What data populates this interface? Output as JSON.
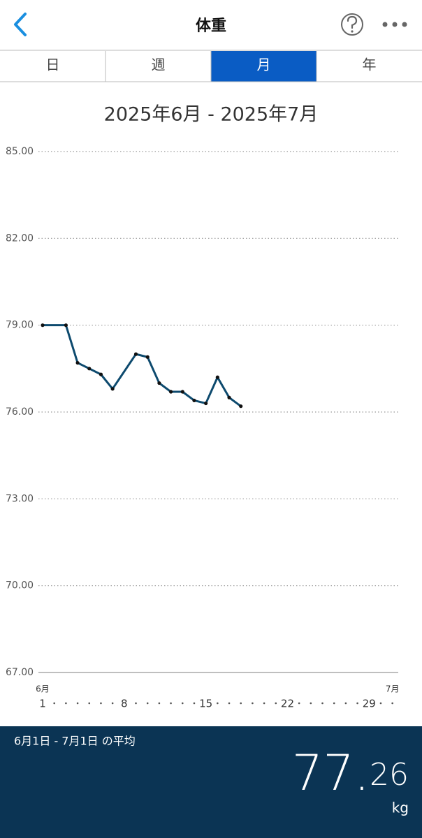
{
  "header": {
    "title": "体重"
  },
  "tabs": {
    "labels": [
      "日",
      "週",
      "月",
      "年"
    ],
    "selected": 2
  },
  "chart_data": {
    "type": "line",
    "title": "2025年6月 - 2025年7月",
    "x": [
      1,
      3,
      4,
      5,
      6,
      7,
      9,
      10,
      11,
      12,
      13,
      14,
      15,
      16,
      17,
      18
    ],
    "series": [
      {
        "name": "体重",
        "color": "#0d4a6e",
        "values": [
          79.0,
          79.0,
          77.7,
          77.5,
          77.3,
          76.8,
          78.0,
          77.9,
          77.0,
          76.7,
          76.7,
          76.4,
          76.3,
          77.2,
          76.5,
          76.2
        ]
      }
    ],
    "xlim": [
      0.64,
      31.5
    ],
    "xticks": [
      1,
      8,
      15,
      22,
      29
    ],
    "month_labels": [
      {
        "value": 1,
        "label": "6月"
      },
      {
        "value": 31,
        "label": "7月"
      }
    ],
    "ylim": [
      67,
      85
    ],
    "yticks": [
      {
        "value": 85,
        "label": "85.00"
      },
      {
        "value": 82,
        "label": "82.00"
      },
      {
        "value": 79,
        "label": "79.00"
      },
      {
        "value": 76,
        "label": "76.00"
      },
      {
        "value": 73,
        "label": "73.00"
      },
      {
        "value": 70,
        "label": "70.00"
      },
      {
        "value": 67,
        "label": "67.00"
      }
    ],
    "grid": true
  },
  "footer": {
    "period": "6月1日 - 7月1日 の平均",
    "average_whole": "77.",
    "average_fraction": "26",
    "unit": "kg"
  }
}
